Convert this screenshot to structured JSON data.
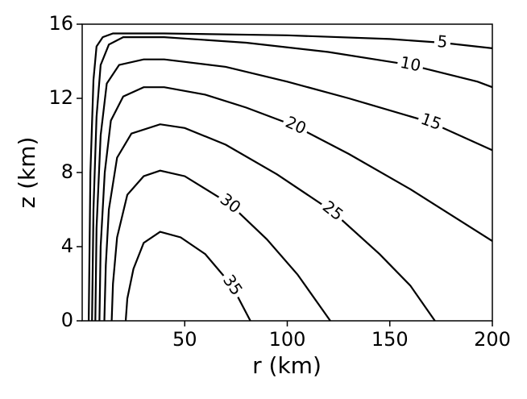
{
  "chart_data": {
    "type": "contour",
    "xlabel": "r (km)",
    "ylabel": "z (km)",
    "xlim": [
      0,
      200
    ],
    "ylim": [
      0,
      16
    ],
    "xticks": [
      50,
      100,
      150,
      200
    ],
    "yticks": [
      0,
      4,
      8,
      12,
      16
    ],
    "series": [
      {
        "name": "5",
        "color": "#000000",
        "x": [
          3.2,
          4,
          5.5,
          7,
          10,
          15,
          40,
          100,
          150,
          175.6,
          200
        ],
        "y": [
          0,
          8,
          13,
          14.8,
          15.3,
          15.5,
          15.5,
          15.4,
          15.2,
          15.0,
          14.7
        ]
      },
      {
        "name": "10",
        "color": "#000000",
        "x": [
          4.8,
          5.5,
          7,
          9,
          13,
          20,
          40,
          80,
          120,
          160,
          192.8,
          200
        ],
        "y": [
          0,
          6,
          11,
          13.8,
          14.9,
          15.3,
          15.3,
          15.0,
          14.5,
          13.8,
          12.9,
          12.6
        ]
      },
      {
        "name": "15",
        "color": "#000000",
        "x": [
          6.4,
          7,
          9,
          12,
          18,
          30,
          40,
          70,
          100,
          130,
          170,
          200
        ],
        "y": [
          0,
          5,
          10,
          12.8,
          13.8,
          14.1,
          14.1,
          13.7,
          12.9,
          12.0,
          10.7,
          9.2
        ]
      },
      {
        "name": "20",
        "color": "#000000",
        "x": [
          8.4,
          9,
          11,
          14,
          20,
          30,
          40,
          60,
          80,
          104,
          130,
          160,
          200
        ],
        "y": [
          0,
          4,
          8,
          10.8,
          12.1,
          12.6,
          12.6,
          12.2,
          11.5,
          10.5,
          9.0,
          7.1,
          4.3
        ]
      },
      {
        "name": "25",
        "color": "#000000",
        "x": [
          10.8,
          11.5,
          13,
          17,
          24,
          38,
          50,
          70,
          95,
          122,
          145,
          160,
          172
        ],
        "y": [
          0,
          3,
          6,
          8.8,
          10.1,
          10.6,
          10.4,
          9.5,
          7.9,
          5.9,
          3.6,
          1.9,
          0
        ]
      },
      {
        "name": "30",
        "color": "#000000",
        "x": [
          14.4,
          15,
          17,
          22,
          30,
          38,
          50,
          72,
          90,
          105,
          121
        ],
        "y": [
          0,
          2,
          4.5,
          6.8,
          7.8,
          8.1,
          7.8,
          6.3,
          4.4,
          2.5,
          0
        ]
      },
      {
        "name": "35",
        "color": "#000000",
        "x": [
          21.2,
          22,
          25,
          30,
          38,
          48,
          60,
          73,
          82
        ],
        "y": [
          0,
          1.2,
          2.8,
          4.2,
          4.8,
          4.5,
          3.6,
          1.9,
          0
        ]
      }
    ]
  }
}
